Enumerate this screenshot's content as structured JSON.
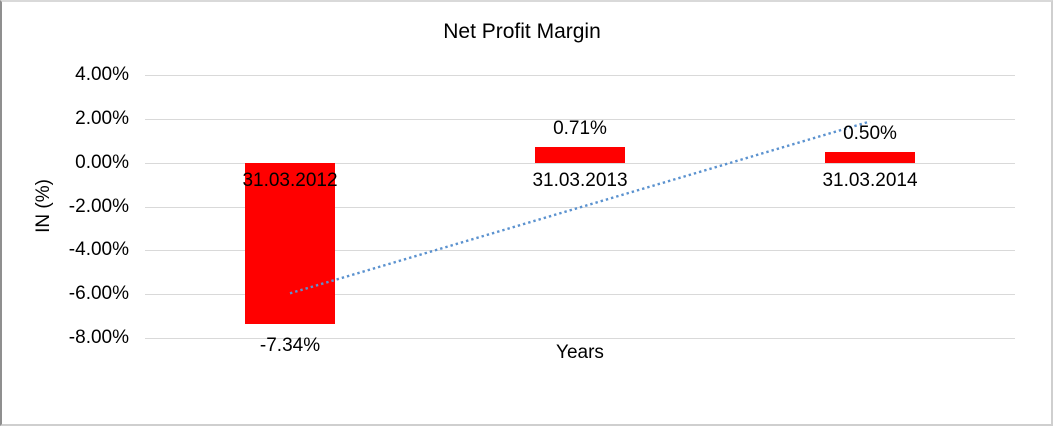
{
  "chart_data": {
    "type": "bar",
    "title": "Net Profit Margin",
    "xlabel": "Years",
    "ylabel": "IN (%)",
    "categories": [
      "31.03.2012",
      "31.03.2013",
      "31.03.2014"
    ],
    "values": [
      -7.34,
      0.71,
      0.5
    ],
    "value_labels": [
      "-7.34%",
      "0.71%",
      "0.50%"
    ],
    "ylim": [
      -8,
      4
    ],
    "ytick_step": 2,
    "ytick_labels": [
      "4.00%",
      "2.00%",
      "0.00%",
      "-2.00%",
      "-4.00%",
      "-6.00%",
      "-8.00%"
    ],
    "grid": "horizontal",
    "legend": "none",
    "bar_color": "#ff0000",
    "gridline_color": "#d9d9d9",
    "text_color": "#000000",
    "trendline": {
      "type": "linear",
      "style": "dotted",
      "color": "#5b92cf",
      "start": {
        "category_index": 0,
        "value": -5.96
      },
      "end": {
        "category_index": 2,
        "value": 1.88
      }
    }
  }
}
